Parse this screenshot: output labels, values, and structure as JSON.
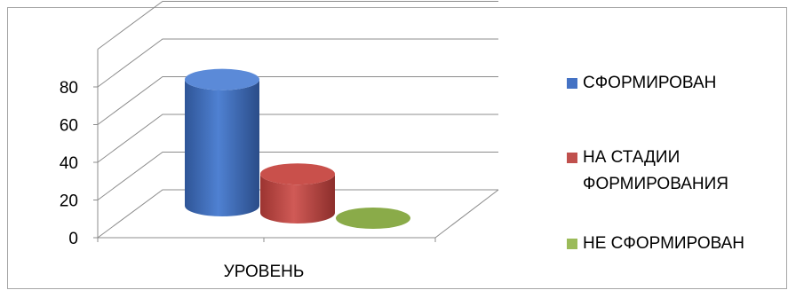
{
  "chart_data": {
    "type": "bar",
    "style": "3d-cylinder",
    "categories": [
      "УРОВЕНЬ"
    ],
    "series": [
      {
        "name": "СФОРМИРОВАН",
        "values": [
          65
        ],
        "color": "#4472c4"
      },
      {
        "name": "НА СТАДИИ ФОРМИРОВАНИЯ",
        "values": [
          20
        ],
        "color": "#c0504d"
      },
      {
        "name": "НЕ СФОРМИРОВАН",
        "values": [
          0
        ],
        "color": "#9bbb59"
      }
    ],
    "yticks": [
      "0",
      "20",
      "40",
      "60",
      "80"
    ],
    "ylim": [
      0,
      80
    ],
    "legend_position": "right",
    "grid": true
  },
  "legend": {
    "items": [
      {
        "lines": [
          "СФОРМИРОВАН"
        ]
      },
      {
        "lines": [
          "НА СТАДИИ",
          "ФОРМИРОВАНИЯ"
        ]
      },
      {
        "lines": [
          "НЕ СФОРМИРОВАН"
        ]
      }
    ]
  }
}
